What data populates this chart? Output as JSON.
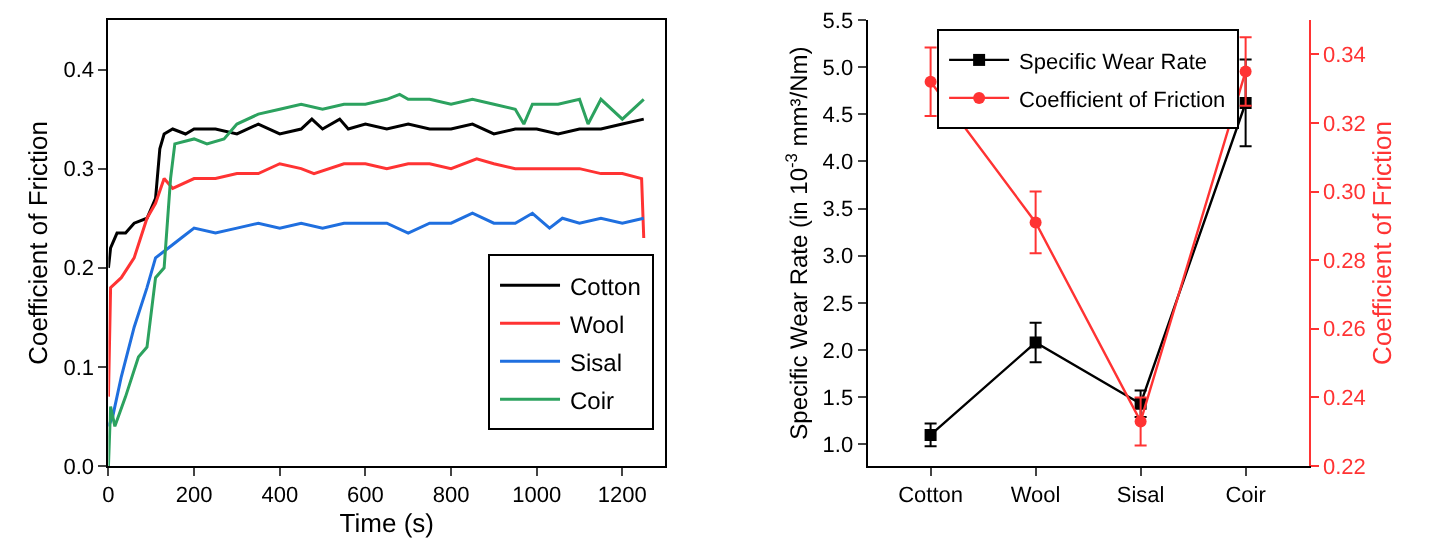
{
  "chart_data": [
    {
      "type": "line",
      "xlabel": "Time (s)",
      "ylabel": "Coefficient of Friction",
      "xlim": [
        0,
        1300
      ],
      "xticks": [
        0,
        200,
        400,
        600,
        800,
        1000,
        1200
      ],
      "ylim": [
        0,
        0.45
      ],
      "yticks": [
        {
          "value": 0,
          "label": "0.0"
        },
        {
          "value": 0.1,
          "label": "0.1"
        },
        {
          "value": 0.2,
          "label": "0.2"
        },
        {
          "value": 0.3,
          "label": "0.3"
        },
        {
          "value": 0.4,
          "label": "0.4"
        }
      ],
      "grid": false,
      "legend": "bottom right",
      "marker": "none",
      "series": [
        {
          "name": "Cotton",
          "color": "#000000",
          "x": [
            0,
            5,
            20,
            40,
            60,
            90,
            110,
            120,
            130,
            150,
            180,
            200,
            250,
            300,
            350,
            400,
            450,
            475,
            500,
            540,
            560,
            600,
            650,
            700,
            750,
            800,
            850,
            900,
            950,
            1000,
            1050,
            1100,
            1150,
            1200,
            1250
          ],
          "values": [
            0.2,
            0.22,
            0.235,
            0.235,
            0.245,
            0.25,
            0.27,
            0.32,
            0.335,
            0.34,
            0.335,
            0.34,
            0.34,
            0.335,
            0.345,
            0.335,
            0.34,
            0.35,
            0.34,
            0.35,
            0.34,
            0.345,
            0.34,
            0.345,
            0.34,
            0.34,
            0.345,
            0.335,
            0.34,
            0.34,
            0.335,
            0.34,
            0.34,
            0.345,
            0.35
          ]
        },
        {
          "name": "Wool",
          "color": "#ff3333",
          "x": [
            0,
            5,
            30,
            60,
            90,
            110,
            130,
            150,
            200,
            250,
            300,
            350,
            400,
            450,
            480,
            550,
            600,
            650,
            700,
            750,
            800,
            860,
            900,
            950,
            1000,
            1050,
            1100,
            1150,
            1200,
            1245,
            1250
          ],
          "values": [
            0.07,
            0.18,
            0.19,
            0.21,
            0.25,
            0.265,
            0.29,
            0.28,
            0.29,
            0.29,
            0.295,
            0.295,
            0.305,
            0.3,
            0.295,
            0.305,
            0.305,
            0.3,
            0.305,
            0.305,
            0.3,
            0.31,
            0.305,
            0.3,
            0.3,
            0.3,
            0.3,
            0.295,
            0.295,
            0.29,
            0.23
          ]
        },
        {
          "name": "Sisal",
          "color": "#1f6fdf",
          "x": [
            0,
            10,
            30,
            60,
            90,
            110,
            140,
            170,
            200,
            250,
            300,
            350,
            400,
            450,
            500,
            550,
            600,
            650,
            700,
            750,
            800,
            850,
            900,
            950,
            990,
            1030,
            1060,
            1100,
            1150,
            1200,
            1250
          ],
          "values": [
            0.04,
            0.05,
            0.09,
            0.14,
            0.18,
            0.21,
            0.22,
            0.23,
            0.24,
            0.235,
            0.24,
            0.245,
            0.24,
            0.245,
            0.24,
            0.245,
            0.245,
            0.245,
            0.235,
            0.245,
            0.245,
            0.255,
            0.245,
            0.245,
            0.255,
            0.24,
            0.25,
            0.245,
            0.25,
            0.245,
            0.25
          ]
        },
        {
          "name": "Coir",
          "color": "#2ca25f",
          "x": [
            0,
            5,
            15,
            40,
            70,
            90,
            110,
            130,
            145,
            155,
            200,
            230,
            270,
            300,
            350,
            400,
            450,
            500,
            550,
            600,
            650,
            680,
            700,
            750,
            800,
            850,
            900,
            950,
            970,
            990,
            1050,
            1100,
            1120,
            1150,
            1200,
            1250
          ],
          "values": [
            0.0,
            0.06,
            0.04,
            0.07,
            0.11,
            0.12,
            0.19,
            0.2,
            0.29,
            0.325,
            0.33,
            0.325,
            0.33,
            0.345,
            0.355,
            0.36,
            0.365,
            0.36,
            0.365,
            0.365,
            0.37,
            0.375,
            0.37,
            0.37,
            0.365,
            0.37,
            0.365,
            0.36,
            0.345,
            0.365,
            0.365,
            0.37,
            0.345,
            0.37,
            0.35,
            0.37
          ]
        }
      ]
    },
    {
      "type": "line",
      "categories": [
        "Cotton",
        "Wool",
        "Sisal",
        "Coir"
      ],
      "ylabel": "Specific Wear Rate (in 10$^{-3}$ mm³/Nm)",
      "y2label": "Coefficient of Friction",
      "ylim": [
        0.77,
        5.5
      ],
      "yticks": [
        {
          "value": 1,
          "label": "1.0"
        },
        1.5,
        {
          "value": 2,
          "label": "2.0"
        },
        2.5,
        {
          "value": 3,
          "label": "3.0"
        },
        3.5,
        {
          "value": 4,
          "label": "4.0"
        },
        4.5,
        {
          "value": 5,
          "label": "5.0"
        },
        5.5
      ],
      "y2lim": [
        0.22,
        0.35
      ],
      "y2ticks": [
        0.22,
        0.24,
        0.26,
        0.28,
        {
          "value": 0.3,
          "label": "0.30"
        },
        0.32,
        0.34
      ],
      "grid": false,
      "legend": "top",
      "series": [
        {
          "name": "Specific Wear Rate",
          "color": "#000000",
          "marker": "square",
          "values": [
            1.1,
            2.08,
            1.43,
            4.62
          ],
          "errors": [
            0.12,
            0.21,
            0.14,
            0.46
          ]
        },
        {
          "name": "Coefficient of Friction",
          "color": "#ff3333",
          "marker": "circle",
          "axis": "y2",
          "values": [
            0.332,
            0.291,
            0.233,
            0.335
          ],
          "errors": [
            0.01,
            0.009,
            0.007,
            0.01
          ]
        }
      ]
    }
  ]
}
